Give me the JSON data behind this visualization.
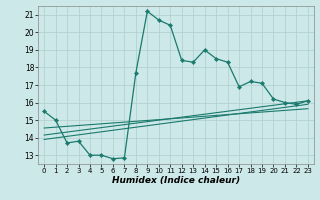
{
  "xlabel": "Humidex (Indice chaleur)",
  "bg_color": "#cde8e8",
  "grid_color": "#aecece",
  "line_color": "#1a7a6e",
  "xlim": [
    -0.5,
    23.5
  ],
  "ylim": [
    12.5,
    21.5
  ],
  "x_ticks": [
    0,
    1,
    2,
    3,
    4,
    5,
    6,
    7,
    8,
    9,
    10,
    11,
    12,
    13,
    14,
    15,
    16,
    17,
    18,
    19,
    20,
    21,
    22,
    23
  ],
  "y_ticks": [
    13,
    14,
    15,
    16,
    17,
    18,
    19,
    20,
    21
  ],
  "line1_x": [
    0,
    1,
    2,
    3,
    4,
    5,
    6,
    7,
    8,
    9,
    10,
    11,
    12,
    13,
    14,
    15,
    16,
    17,
    18,
    19,
    20,
    21,
    22,
    23
  ],
  "line1_y": [
    15.5,
    15.0,
    13.7,
    13.8,
    13.0,
    13.0,
    12.8,
    12.85,
    17.7,
    21.2,
    20.7,
    20.4,
    18.4,
    18.3,
    19.0,
    18.5,
    18.3,
    16.9,
    17.2,
    17.1,
    16.2,
    16.0,
    15.9,
    16.1
  ],
  "line2_x": [
    0,
    23
  ],
  "line2_y": [
    13.9,
    15.9
  ],
  "line3_x": [
    0,
    23
  ],
  "line3_y": [
    14.15,
    16.1
  ],
  "line4_x": [
    0,
    23
  ],
  "line4_y": [
    14.55,
    15.65
  ],
  "marker_x4": [
    0,
    1,
    2,
    3,
    4,
    5,
    6,
    7,
    8,
    9,
    10,
    11,
    12,
    13,
    14,
    15,
    16,
    17,
    18,
    19,
    20,
    21,
    22,
    23
  ],
  "marker_y4": [
    14.55,
    14.6,
    14.65,
    14.7,
    14.75,
    14.78,
    14.82,
    14.85,
    14.9,
    15.0,
    15.05,
    15.1,
    15.2,
    15.3,
    15.4,
    15.5,
    15.55,
    15.6,
    15.62,
    15.63,
    15.64,
    15.65,
    15.65,
    15.65
  ]
}
